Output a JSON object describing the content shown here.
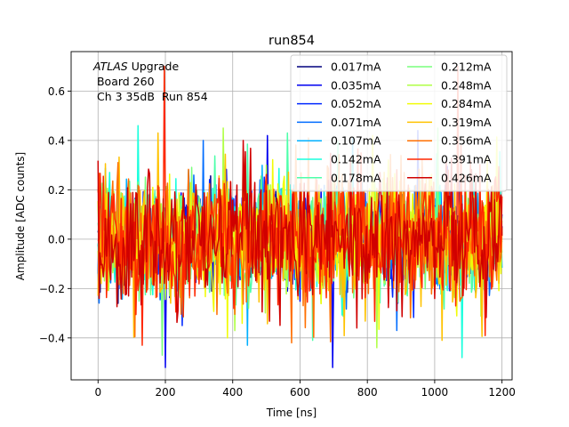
{
  "chart_data": {
    "type": "line",
    "title": "run854",
    "xlabel": "Time [ns]",
    "ylabel": "Amplitude [ADC counts]",
    "xlim": [
      -80,
      1230
    ],
    "ylim": [
      -0.57,
      0.76
    ],
    "xticks": [
      0,
      200,
      400,
      600,
      800,
      1000,
      1200
    ],
    "yticks": [
      -0.4,
      -0.2,
      0.0,
      0.2,
      0.4,
      0.6
    ],
    "xtick_labels": [
      "0",
      "200",
      "400",
      "600",
      "800",
      "1000",
      "1200"
    ],
    "ytick_labels": [
      "−0.4",
      "−0.2",
      "0.0",
      "0.2",
      "0.4",
      "0.6"
    ],
    "grid": true,
    "legend_position": "top-right",
    "legend_columns": 2,
    "annotation": {
      "italic_part": "ATLAS",
      "rest_line1": " Upgrade",
      "line2": " Board 260",
      "line3": " Ch 3 35dB  Run 854"
    },
    "x_range": [
      0,
      1200
    ],
    "sample_step_ns": 3.125,
    "series": [
      {
        "name": "0.017mA",
        "color": "#00007f",
        "min": -0.26,
        "max": 0.33
      },
      {
        "name": "0.035mA",
        "color": "#0000f0",
        "min": -0.52,
        "max": 0.42
      },
      {
        "name": "0.052mA",
        "color": "#0028ff",
        "min": -0.35,
        "max": 0.44
      },
      {
        "name": "0.071mA",
        "color": "#006cff",
        "min": -0.37,
        "max": 0.4
      },
      {
        "name": "0.107mA",
        "color": "#00b0ff",
        "min": -0.43,
        "max": 0.41
      },
      {
        "name": "0.142mA",
        "color": "#19ffdd",
        "min": -0.48,
        "max": 0.46
      },
      {
        "name": "0.178mA",
        "color": "#4dffaa",
        "min": -0.41,
        "max": 0.43
      },
      {
        "name": "0.212mA",
        "color": "#79ff7d",
        "min": -0.47,
        "max": 0.45
      },
      {
        "name": "0.248mA",
        "color": "#b0ff46",
        "min": -0.44,
        "max": 0.45
      },
      {
        "name": "0.284mA",
        "color": "#f1fc06",
        "min": -0.4,
        "max": 0.42
      },
      {
        "name": "0.319mA",
        "color": "#ffc200",
        "min": -0.41,
        "max": 0.43
      },
      {
        "name": "0.356mA",
        "color": "#ff6f00",
        "min": -0.42,
        "max": 0.41
      },
      {
        "name": "0.391mA",
        "color": "#ff2700",
        "min": -0.43,
        "max": 0.7
      },
      {
        "name": "0.426mA",
        "color": "#d00000",
        "min": -0.36,
        "max": 0.4
      }
    ]
  }
}
